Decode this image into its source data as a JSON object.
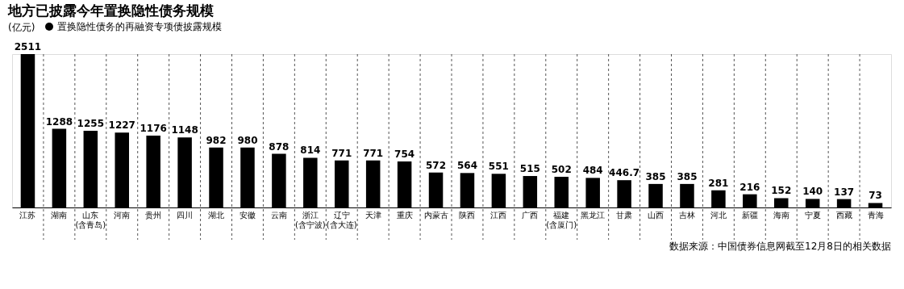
{
  "chart_data": {
    "type": "bar",
    "title": "地方已披露今年置换隐性债务规模",
    "ylabel": "(亿元)",
    "categories": [
      "江苏",
      "湖南",
      "山东 (含青岛)",
      "河南",
      "贵州",
      "四川",
      "湖北",
      "安徽",
      "云南",
      "浙江 (含宁波)",
      "辽宁 (含大连)",
      "天津",
      "重庆",
      "内蒙古",
      "陕西",
      "江西",
      "广西",
      "福建 (含厦门)",
      "黑龙江",
      "甘肃",
      "山西",
      "吉林",
      "河北",
      "新疆",
      "海南",
      "宁夏",
      "西藏",
      "青海"
    ],
    "series": [
      {
        "name": "置换隐性债务的再融资专项债披露规模",
        "color": "#000000",
        "values": [
          2511,
          1288,
          1255,
          1227,
          1176,
          1148,
          982,
          980,
          878,
          814,
          771,
          771,
          754,
          572,
          564,
          551,
          515,
          502,
          484,
          446.7,
          385,
          385,
          281,
          216,
          152,
          140,
          137,
          73
        ]
      }
    ],
    "data_labels": true,
    "grid": "x",
    "legend": "top left",
    "marker": "circle",
    "annotations": [
      "数据来源：中国债券信息网截至12月8日的相关数据"
    ]
  }
}
